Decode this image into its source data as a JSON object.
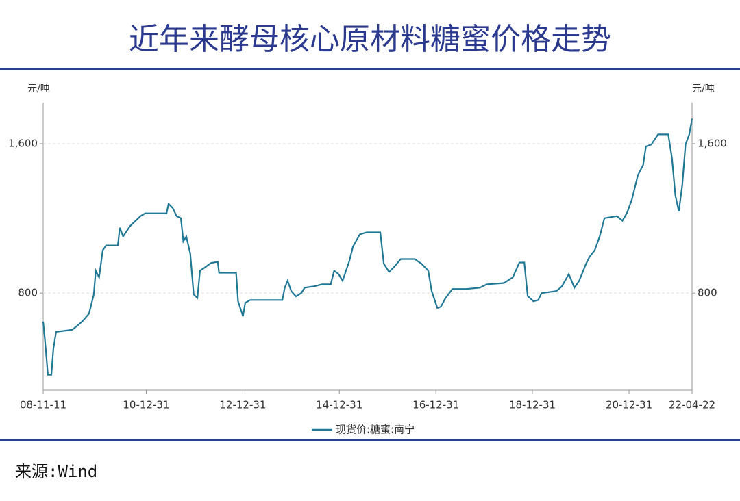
{
  "title": "近年来酵母核心原材料糖蜜价格走势",
  "source": "来源:Wind",
  "chart_data": {
    "type": "line",
    "y_label": "元/吨",
    "x": [
      "08-11-11",
      "08-11-25",
      "08-12-17",
      "09-01-12",
      "09-01-27",
      "09-02-17",
      "09-06-18",
      "09-07-13",
      "09-09-02",
      "09-10-24",
      "09-11-29",
      "09-12-14",
      "10-01-08",
      "10-02-05",
      "10-03-03",
      "10-05-30",
      "10-06-14",
      "10-07-09",
      "10-08-30",
      "10-11-17",
      "10-12-23",
      "11-06-03",
      "11-06-18",
      "11-07-19",
      "11-08-18",
      "11-09-19",
      "11-10-08",
      "11-10-30",
      "11-11-29",
      "11-12-25",
      "12-01-22",
      "12-02-11",
      "12-03-22",
      "12-05-03",
      "12-06-24",
      "12-07-04",
      "12-11-10",
      "12-11-25",
      "13-01-01",
      "13-01-18",
      "13-02-24",
      "13-10-26",
      "13-11-13",
      "13-12-05",
      "14-01-01",
      "14-02-06",
      "14-03-18",
      "14-04-13",
      "14-06-21",
      "14-08-22",
      "14-10-27",
      "14-11-22",
      "14-12-25",
      "15-01-25",
      "15-03-18",
      "15-04-13",
      "15-06-04",
      "15-07-25",
      "15-11-06",
      "15-12-03",
      "16-01-12",
      "16-02-17",
      "16-04-09",
      "16-07-23",
      "16-09-13",
      "16-11-03",
      "16-11-29",
      "17-01-11",
      "17-02-06",
      "17-03-14",
      "17-05-05",
      "17-08-18",
      "17-11-29",
      "18-01-19",
      "18-05-30",
      "18-08-04",
      "18-09-24",
      "18-10-31",
      "18-11-25",
      "19-01-07",
      "19-02-13",
      "19-03-10",
      "19-07-01",
      "19-08-11",
      "19-10-02",
      "19-11-14",
      "19-12-20",
      "20-02-10",
      "20-03-07",
      "20-04-16",
      "20-05-23",
      "20-06-28",
      "20-10-01",
      "20-11-11",
      "20-12-17",
      "21-01-23",
      "21-03-08",
      "21-04-17",
      "21-05-08",
      "21-06-18",
      "21-08-08",
      "21-10-24",
      "21-11-21",
      "21-12-17",
      "22-01-12",
      "22-02-07",
      "22-03-04",
      "22-04-01",
      "22-04-22"
    ],
    "series": [
      {
        "name": "现货价:糖蜜:南宁",
        "color": "#1f7896",
        "values": [
          647,
          545,
          362,
          362,
          501,
          592,
          603,
          617,
          647,
          690,
          793,
          920,
          884,
          1030,
          1055,
          1055,
          1150,
          1103,
          1158,
          1212,
          1227,
          1227,
          1278,
          1256,
          1212,
          1201,
          1077,
          1103,
          1012,
          793,
          774,
          920,
          939,
          961,
          968,
          909,
          909,
          756,
          676,
          748,
          763,
          763,
          829,
          866,
          811,
          782,
          800,
          829,
          836,
          847,
          847,
          920,
          902,
          866,
          975,
          1048,
          1114,
          1125,
          1125,
          957,
          913,
          939,
          982,
          982,
          957,
          920,
          811,
          720,
          727,
          774,
          822,
          822,
          829,
          847,
          854,
          884,
          964,
          964,
          785,
          756,
          763,
          800,
          811,
          836,
          902,
          829,
          866,
          957,
          993,
          1030,
          1103,
          1201,
          1212,
          1187,
          1231,
          1304,
          1431,
          1486,
          1585,
          1596,
          1650,
          1650,
          1523,
          1322,
          1238,
          1377,
          1596,
          1650,
          1734
        ]
      }
    ],
    "xlim": [
      "08-11-11",
      "22-04-22"
    ],
    "xticks": [
      "08-11-11",
      "10-12-31",
      "12-12-31",
      "14-12-31",
      "16-12-31",
      "18-12-31",
      "20-12-31",
      "22-04-22"
    ],
    "ylim": [
      280,
      1820
    ],
    "yticks": [
      800,
      {
        "value": 1600,
        "label": "1,600"
      }
    ],
    "grid": true
  }
}
